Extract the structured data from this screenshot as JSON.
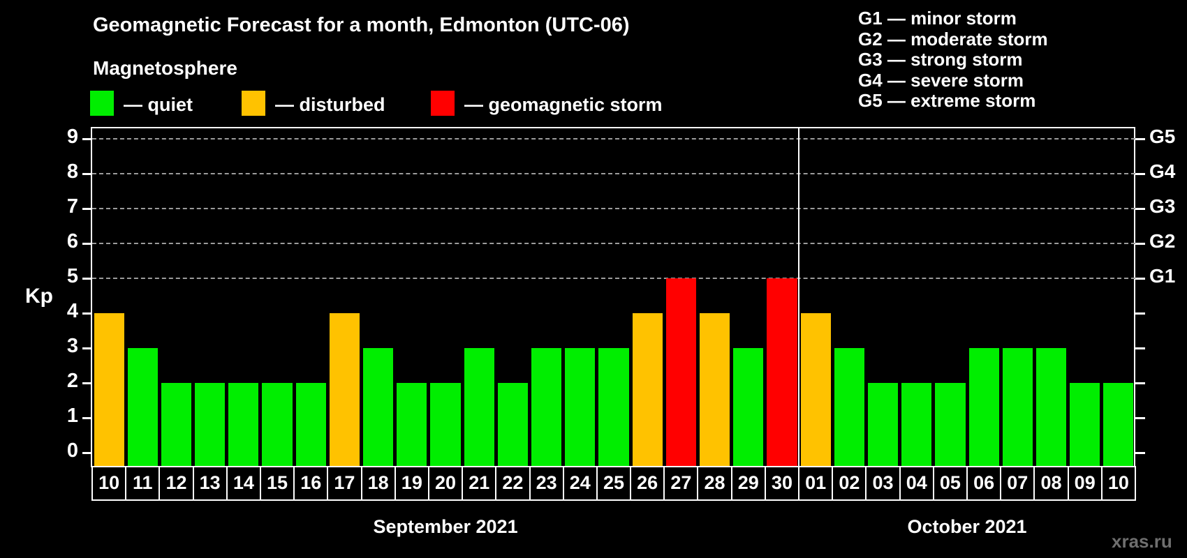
{
  "header": {
    "title": "Geomagnetic Forecast for a month, Edmonton (UTC-06)",
    "subtitle": "Magnetosphere"
  },
  "legend": {
    "items": [
      {
        "key": "quiet",
        "label": "— quiet",
        "color": "#00ee00"
      },
      {
        "key": "disturbed",
        "label": "— disturbed",
        "color": "#ffc200"
      },
      {
        "key": "storm",
        "label": "— geomagnetic storm",
        "color": "#ff0000"
      }
    ]
  },
  "g_legend": {
    "items": [
      "G1 — minor storm",
      "G2 — moderate storm",
      "G3 — strong storm",
      "G4 — severe storm",
      "G5 — extreme storm"
    ]
  },
  "chart_data": {
    "type": "bar",
    "title": "Geomagnetic Forecast for a month, Edmonton (UTC-06)",
    "ylabel": "Kp",
    "ylim": [
      0,
      9
    ],
    "yticks": [
      0,
      1,
      2,
      3,
      4,
      5,
      6,
      7,
      8,
      9
    ],
    "gridlines_at": [
      5,
      6,
      7,
      8,
      9
    ],
    "grid": "dashed, horizontal only, at G-storm levels",
    "right_axis": [
      {
        "label": "G1",
        "value": 5
      },
      {
        "label": "G2",
        "value": 6
      },
      {
        "label": "G3",
        "value": 7
      },
      {
        "label": "G4",
        "value": 8
      },
      {
        "label": "G5",
        "value": 9
      }
    ],
    "months": [
      {
        "label": "September 2021",
        "days": 21
      },
      {
        "label": "October 2021",
        "days": 10
      }
    ],
    "categories": [
      "10",
      "11",
      "12",
      "13",
      "14",
      "15",
      "16",
      "17",
      "18",
      "19",
      "20",
      "21",
      "22",
      "23",
      "24",
      "25",
      "26",
      "27",
      "28",
      "29",
      "30",
      "01",
      "02",
      "03",
      "04",
      "05",
      "06",
      "07",
      "08",
      "09",
      "10"
    ],
    "values": [
      4,
      3,
      2,
      2,
      2,
      2,
      2,
      4,
      3,
      2,
      2,
      3,
      2,
      3,
      3,
      3,
      4,
      5,
      4,
      3,
      5,
      4,
      3,
      2,
      2,
      2,
      3,
      3,
      3,
      2,
      2
    ],
    "statuses": [
      "disturbed",
      "quiet",
      "quiet",
      "quiet",
      "quiet",
      "quiet",
      "quiet",
      "disturbed",
      "quiet",
      "quiet",
      "quiet",
      "quiet",
      "quiet",
      "quiet",
      "quiet",
      "quiet",
      "disturbed",
      "storm",
      "disturbed",
      "quiet",
      "storm",
      "disturbed",
      "quiet",
      "quiet",
      "quiet",
      "quiet",
      "quiet",
      "quiet",
      "quiet",
      "quiet",
      "quiet"
    ],
    "status_colors": {
      "quiet": "#00ee00",
      "disturbed": "#ffc200",
      "storm": "#ff0000"
    }
  },
  "colors": {
    "background": "#000000",
    "axis": "#ffffff",
    "grid": "#9c9c9c",
    "text": "#ffffff",
    "watermark": "#6f6f6f"
  },
  "watermark": "xras.ru"
}
